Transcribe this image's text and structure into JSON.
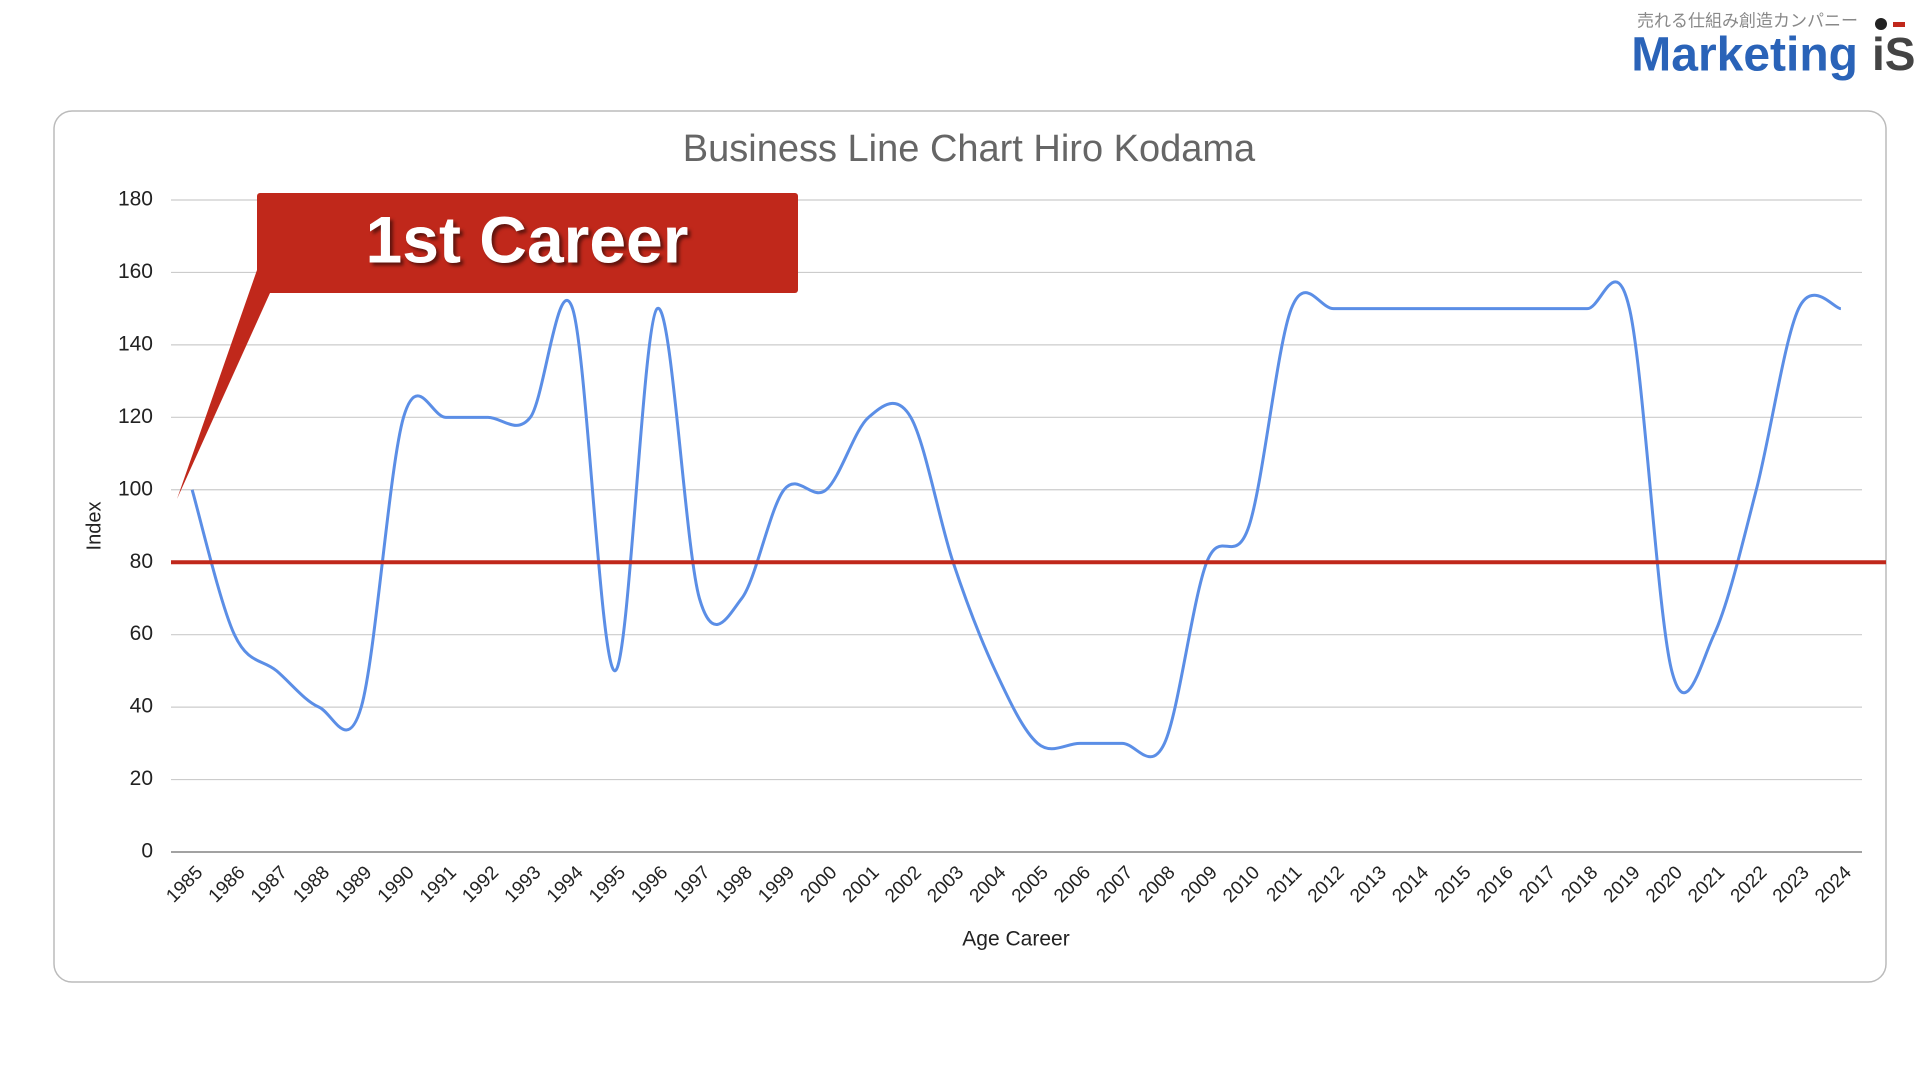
{
  "brand": {
    "tagline": "売れる仕組み創造カンパニー",
    "name": "Marketing",
    "mark": "iS"
  },
  "chart_data": {
    "type": "line",
    "title": "Business Line Chart Hiro Kodama",
    "x_label": "Age Career",
    "y_label": "Index",
    "annotation": "1st Career",
    "categories": [
      "1985",
      "1986",
      "1987",
      "1988",
      "1989",
      "1990",
      "1991",
      "1992",
      "1993",
      "1994",
      "1995",
      "1996",
      "1997",
      "1998",
      "1999",
      "2000",
      "2001",
      "2002",
      "2003",
      "2004",
      "2005",
      "2006",
      "2007",
      "2008",
      "2009",
      "2010",
      "2011",
      "2012",
      "2013",
      "2014",
      "2015",
      "2016",
      "2017",
      "2018",
      "2019",
      "2020",
      "2021",
      "2022",
      "2023",
      "2024"
    ],
    "series": [
      {
        "name": "Index",
        "color": "#5b8ee6",
        "values": [
          100,
          60,
          50,
          40,
          40,
          120,
          120,
          120,
          120,
          150,
          50,
          150,
          70,
          70,
          100,
          100,
          120,
          120,
          80,
          50,
          30,
          30,
          30,
          30,
          80,
          90,
          150,
          150,
          150,
          150,
          150,
          150,
          150,
          150,
          150,
          50,
          60,
          100,
          150,
          150
        ]
      }
    ],
    "reference_line": {
      "value": 80,
      "color": "#c0281b"
    },
    "ylim": [
      0,
      180
    ],
    "yticks": [
      0,
      20,
      40,
      60,
      80,
      100,
      120,
      140,
      160,
      180
    ],
    "grid": true,
    "smooth": true
  }
}
